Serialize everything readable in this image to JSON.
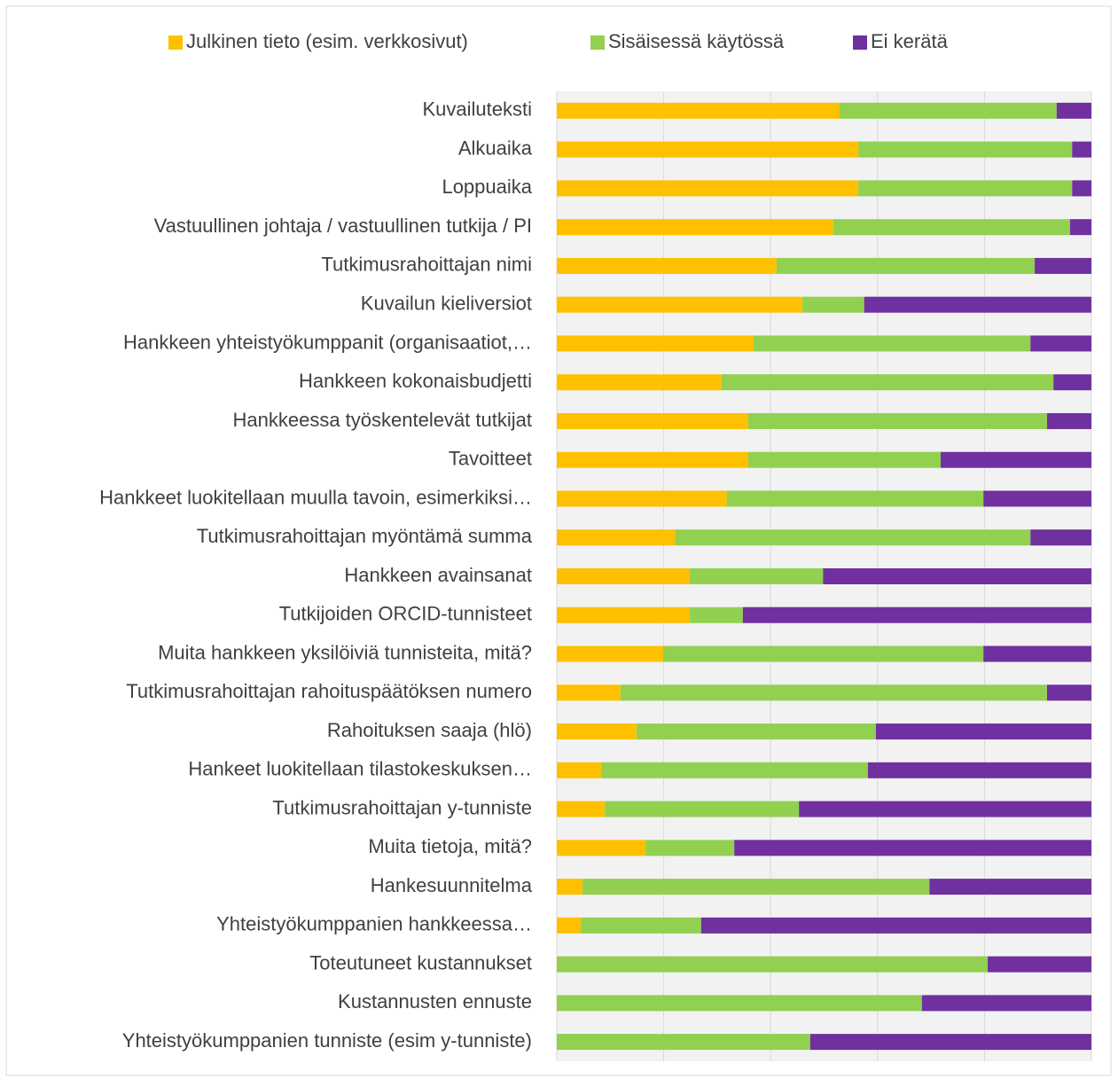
{
  "chart_data": {
    "type": "stacked-barh",
    "categories": [
      "Kuvailuteksti",
      "Alkuaika",
      "Loppuaika",
      "Vastuullinen johtaja / vastuullinen tutkija / PI",
      "Tutkimusrahoittajan nimi",
      "Kuvailun kieliversiot",
      "Hankkeen yhteistyökumppanit (organisaatiot,…",
      "Hankkeen kokonaisbudjetti",
      "Hankkeessa työskentelevät tutkijat",
      "Tavoitteet",
      "Hankkeet luokitellaan muulla tavoin, esimerkiksi…",
      "Tutkimusrahoittajan myöntämä summa",
      "Hankkeen avainsanat",
      "Tutkijoiden ORCID-tunnisteet",
      "Muita hankkeen yksilöiviä tunnisteita, mitä?",
      "Tutkimusrahoittajan rahoituspäätöksen numero",
      "Rahoituksen saaja (hlö)",
      "Hankeet luokitellaan tilastokeskuksen…",
      "Tutkimusrahoittajan y-tunniste",
      "Muita tietoja, mitä?",
      "Hankesuunnitelma",
      "Yhteistyökumppanien hankkeessa…",
      "Toteutuneet kustannukset",
      "Kustannusten ennuste",
      "Yhteistyökumppanien tunniste (esim y-tunniste)"
    ],
    "series": [
      {
        "name": "Julkinen  tieto (esim. verkkosivut)",
        "color": "#ffc000",
        "values": [
          52.9,
          56.4,
          56.4,
          51.7,
          41.1,
          45.9,
          36.8,
          30.8,
          35.8,
          35.8,
          31.8,
          22.1,
          24.9,
          24.9,
          19.9,
          11.9,
          14.9,
          8.3,
          9.0,
          16.6,
          4.8,
          4.5,
          0,
          0,
          0
        ]
      },
      {
        "name": "Sisäisessä käytössä",
        "color": "#92d050",
        "values": [
          40.6,
          40.0,
          40.0,
          44.3,
          48.3,
          11.6,
          51.8,
          62.1,
          55.9,
          36.0,
          48.0,
          66.5,
          24.9,
          9.9,
          59.9,
          79.8,
          44.8,
          49.9,
          36.3,
          16.6,
          64.9,
          22.5,
          80.6,
          68.3,
          47.4
        ]
      },
      {
        "name": "Ei kerätä",
        "color": "#7030a0",
        "values": [
          6.5,
          3.6,
          3.6,
          4.0,
          10.6,
          42.5,
          11.4,
          7.1,
          8.3,
          28.2,
          20.2,
          11.4,
          50.2,
          65.2,
          20.2,
          8.3,
          40.3,
          41.8,
          54.7,
          66.8,
          30.3,
          73.0,
          19.4,
          31.7,
          52.6
        ]
      }
    ],
    "xlim": [
      0,
      100
    ],
    "xticks": [
      0,
      20,
      40,
      60,
      80,
      100
    ],
    "grid": true,
    "legend": "top"
  }
}
